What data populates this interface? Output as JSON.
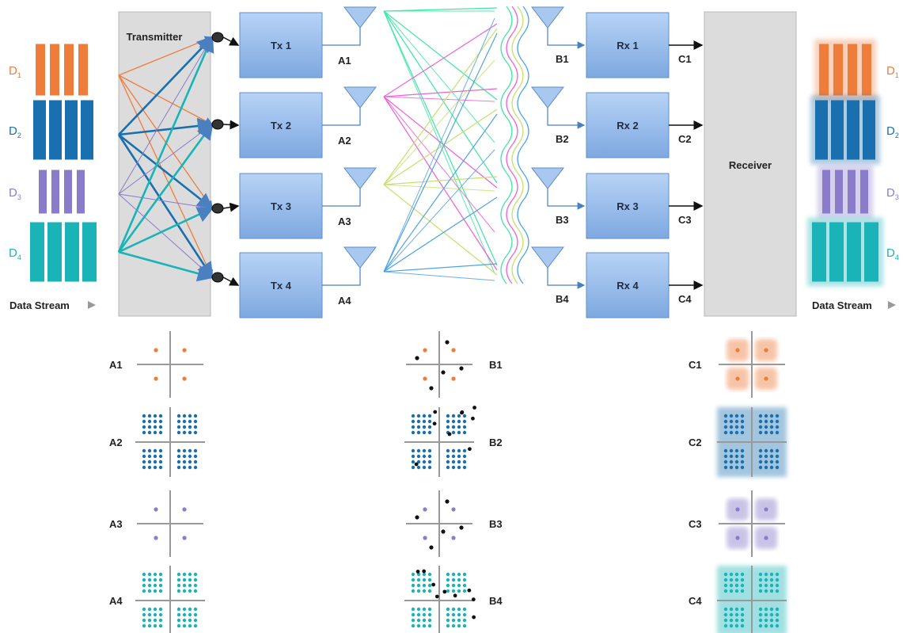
{
  "colors": {
    "d1": "#ee7d3c",
    "d2": "#1a6fae",
    "d3": "#8a7bcb",
    "d4": "#19b3b8",
    "block_fill": "#8fb8ea",
    "panel_fill": "#dcdcdc",
    "channel_colors": [
      "#3ee6a5",
      "#f05fd8",
      "#c6e06a",
      "#4fa2e8"
    ]
  },
  "data_streams": [
    {
      "letter": "D",
      "sub": "1",
      "color": "d1"
    },
    {
      "letter": "D",
      "sub": "2",
      "color": "d2"
    },
    {
      "letter": "D",
      "sub": "3",
      "color": "d3"
    },
    {
      "letter": "D",
      "sub": "4",
      "color": "d4"
    }
  ],
  "data_stream_label": "Data Stream",
  "transmitter_label": "Transmitter",
  "receiver_label": "Receiver",
  "tx_blocks": [
    "Tx 1",
    "Tx 2",
    "Tx 3",
    "Tx 4"
  ],
  "rx_blocks": [
    "Rx 1",
    "Rx 2",
    "Rx 3",
    "Rx 4"
  ],
  "tx_antennas": [
    "A1",
    "A2",
    "A3",
    "A4"
  ],
  "rx_antennas": [
    "B1",
    "B2",
    "B3",
    "B4"
  ],
  "outputs": [
    "C1",
    "C2",
    "C3",
    "C4"
  ],
  "constellations": {
    "A": [
      {
        "label": "A1",
        "kind": "qpsk",
        "color": "d1"
      },
      {
        "label": "A2",
        "kind": "qam",
        "color": "d2"
      },
      {
        "label": "A3",
        "kind": "qpsk",
        "color": "d3"
      },
      {
        "label": "A4",
        "kind": "qam",
        "color": "d4"
      }
    ],
    "B": [
      {
        "label": "B1",
        "kind": "qpsk",
        "color": "d1"
      },
      {
        "label": "B2",
        "kind": "qam",
        "color": "d2"
      },
      {
        "label": "B3",
        "kind": "qpsk",
        "color": "d3"
      },
      {
        "label": "B4",
        "kind": "qam",
        "color": "d4"
      }
    ],
    "C": [
      {
        "label": "C1",
        "kind": "qpsk",
        "color": "d1"
      },
      {
        "label": "C2",
        "kind": "qam",
        "color": "d2"
      },
      {
        "label": "C3",
        "kind": "qpsk",
        "color": "d3"
      },
      {
        "label": "C4",
        "kind": "qam",
        "color": "d4"
      }
    ]
  }
}
